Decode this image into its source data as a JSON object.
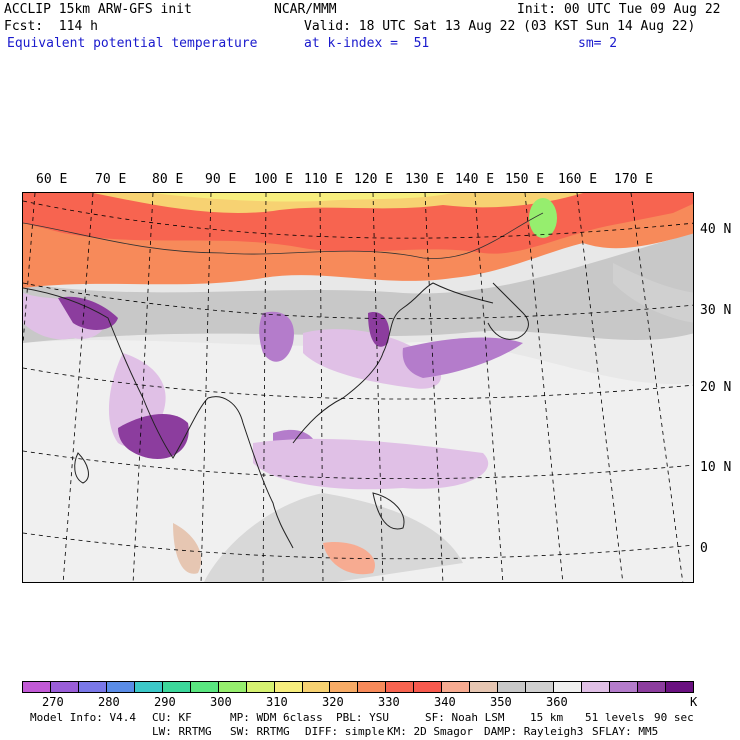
{
  "header": {
    "model": "ACCLIP 15km ARW-GFS init",
    "org": "NCAR/MMM",
    "init": "Init: 00 UTC Tue 09 Aug 22",
    "fcst": "Fcst:  114 h",
    "valid": "Valid: 18 UTC Sat 13 Aug 22 (03 KST Sun 14 Aug 22)",
    "field": "Equivalent potential temperature",
    "level": "at k-index =  51",
    "smooth": "sm= 2"
  },
  "map": {
    "lon_labels": [
      "60 E",
      "70 E",
      "80 E",
      "90 E",
      "100 E",
      "110 E",
      "120 E",
      "130 E",
      "140 E",
      "150 E",
      "160 E",
      "170 E"
    ],
    "lat_labels": [
      "40 N",
      "30 N",
      "20 N",
      "10 N",
      "0"
    ]
  },
  "colorbar": {
    "colors": [
      "#c25ad6",
      "#9a5ed8",
      "#7a78e8",
      "#5a8ce6",
      "#3cc8c8",
      "#3cd79b",
      "#5ae680",
      "#96ee6e",
      "#d6f272",
      "#f7ee7e",
      "#f7d272",
      "#f7ab66",
      "#f78a5a",
      "#f76450",
      "#f75a4e",
      "#f7ab91",
      "#e6c6b2",
      "#c8c8c8",
      "#d0d0d0",
      "#f0f0f0",
      "#e0c0e6",
      "#b47ccb",
      "#8c3d9e",
      "#6a1180"
    ],
    "labels": [
      "270",
      "280",
      "290",
      "300",
      "310",
      "320",
      "330",
      "340",
      "350",
      "360",
      "K"
    ],
    "unit": "K"
  },
  "footer": {
    "line1": [
      "Model Info: V4.4",
      "CU: KF",
      "MP: WDM 6class",
      "PBL: YSU",
      "SF: Noah LSM",
      "15 km",
      "51 levels",
      "90 sec"
    ],
    "line2": [
      "LW: RRTMG",
      "SW: RRTMG",
      "DIFF: simple",
      "KM: 2D Smagor",
      "DAMP: Rayleigh3",
      "SFLAY: MM5"
    ]
  }
}
